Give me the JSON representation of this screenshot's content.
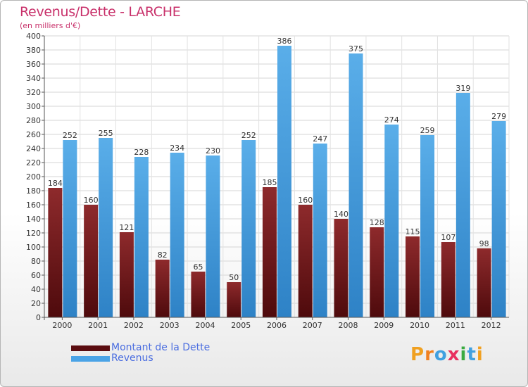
{
  "title": "Revenus/Dette - LARCHE",
  "subtitle": "(en milliers d'€)",
  "legend": {
    "dette_label": "Montant de la Dette",
    "revenus_label": "Revenus"
  },
  "logo": {
    "letters": [
      "P",
      "r",
      "o",
      "x",
      "i",
      "t",
      "i"
    ],
    "colors": [
      "#f0a020",
      "#f08020",
      "#40a0e0",
      "#e83060",
      "#3aaa40",
      "#40a0e0",
      "#f0a020"
    ]
  },
  "colors": {
    "dette": "#7a1a1e",
    "revenus": "#4aa3e6"
  },
  "chart_data": {
    "type": "bar",
    "categories": [
      "2000",
      "2001",
      "2002",
      "2003",
      "2004",
      "2005",
      "2006",
      "2007",
      "2008",
      "2009",
      "2010",
      "2011",
      "2012"
    ],
    "series": [
      {
        "name": "Montant de la Dette",
        "values": [
          184,
          160,
          121,
          82,
          65,
          50,
          185,
          160,
          140,
          128,
          115,
          107,
          98
        ]
      },
      {
        "name": "Revenus",
        "values": [
          252,
          255,
          228,
          234,
          230,
          252,
          386,
          247,
          375,
          274,
          259,
          319,
          279
        ]
      }
    ],
    "title": "Revenus/Dette - LARCHE",
    "ylabel": "(en milliers d'€)",
    "ylim": [
      0,
      400
    ],
    "ytick_step": 20,
    "grid": true,
    "legend_position": "bottom-left"
  }
}
